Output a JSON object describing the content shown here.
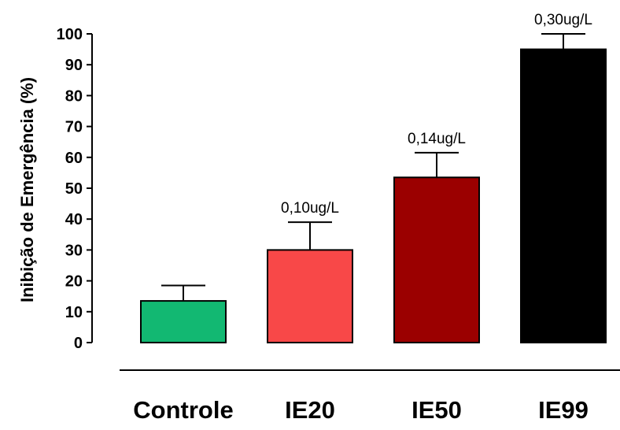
{
  "chart_data": {
    "type": "bar",
    "title": "",
    "xlabel": "",
    "ylabel": "Inibição de Emergência (%)",
    "ylim": [
      0,
      100
    ],
    "yticks": [
      "0",
      "10",
      "20",
      "30",
      "40",
      "50",
      "60",
      "70",
      "80",
      "90",
      "100"
    ],
    "categories": [
      "Controle",
      "IE20",
      "IE50",
      "IE99"
    ],
    "values": [
      13.5,
      30,
      53.5,
      95
    ],
    "error_plus": [
      5,
      9,
      8,
      5
    ],
    "bar_colors": [
      "#12b872",
      "#f84848",
      "#9b0000",
      "#000000"
    ],
    "data_labels": [
      "",
      "0,10ug/L",
      "0,14ug/L",
      "0,30ug/L"
    ],
    "grid": false,
    "legend": "none"
  }
}
